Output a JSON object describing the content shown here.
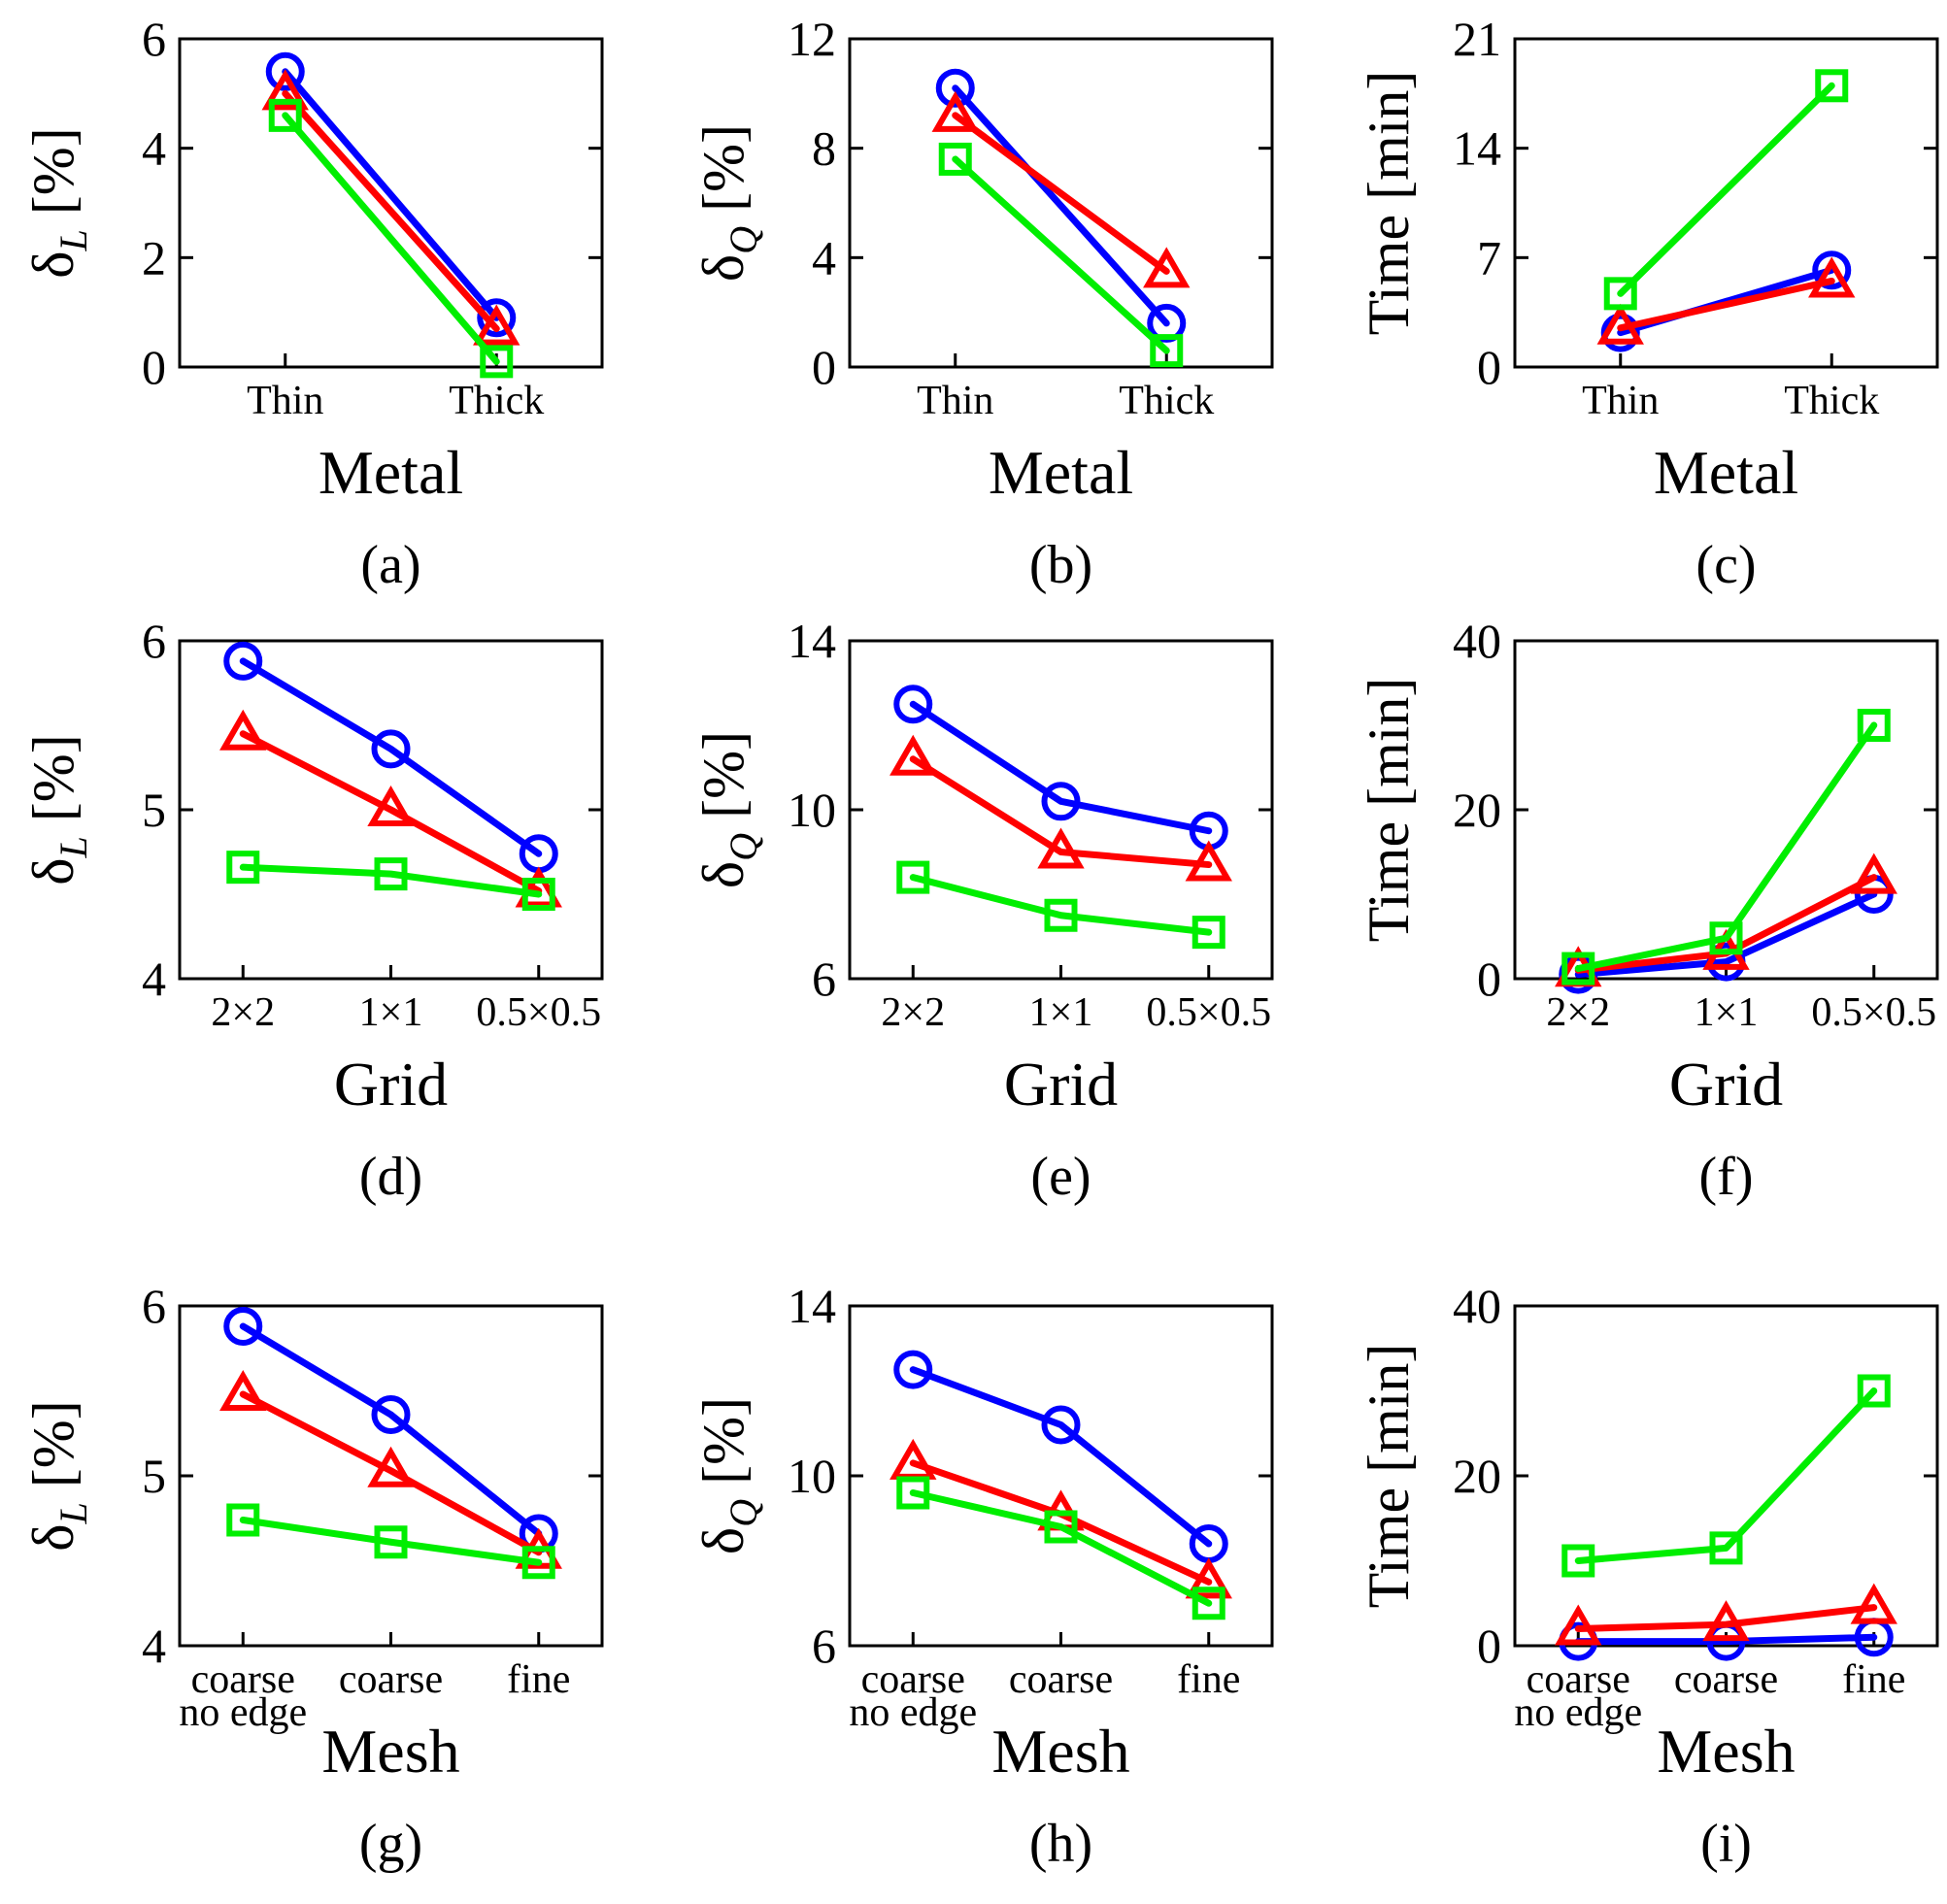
{
  "chart_data": [
    {
      "panel": "(a)",
      "type": "line",
      "xlabel": "Metal",
      "ylabel_main": "δ",
      "ylabel_sub": "L",
      "ylabel_unit": " [%]",
      "categories": [
        "Thin",
        "Thick"
      ],
      "ylim": [
        0,
        6
      ],
      "yticks": [
        "0",
        "2",
        "4",
        "6"
      ],
      "series": [
        {
          "name": "blue",
          "color": "#0000ff",
          "marker": "circle",
          "values": [
            5.4,
            0.9
          ]
        },
        {
          "name": "red",
          "color": "#ff0000",
          "marker": "triangle",
          "values": [
            5.0,
            0.7
          ]
        },
        {
          "name": "green",
          "color": "#00ee00",
          "marker": "square",
          "values": [
            4.6,
            0.1
          ]
        }
      ]
    },
    {
      "panel": "(b)",
      "type": "line",
      "xlabel": "Metal",
      "ylabel_main": "δ",
      "ylabel_sub": "Q",
      "ylabel_unit": " [%]",
      "categories": [
        "Thin",
        "Thick"
      ],
      "ylim": [
        0,
        12
      ],
      "yticks": [
        "0",
        "4",
        "8",
        "12"
      ],
      "series": [
        {
          "name": "blue",
          "color": "#0000ff",
          "marker": "circle",
          "values": [
            10.2,
            1.6
          ]
        },
        {
          "name": "red",
          "color": "#ff0000",
          "marker": "triangle",
          "values": [
            9.2,
            3.5
          ]
        },
        {
          "name": "green",
          "color": "#00ee00",
          "marker": "square",
          "values": [
            7.6,
            0.6
          ]
        }
      ]
    },
    {
      "panel": "(c)",
      "type": "line",
      "xlabel": "Metal",
      "ylabel_main": "Time [min]",
      "ylabel_sub": "",
      "ylabel_unit": "",
      "categories": [
        "Thin",
        "Thick"
      ],
      "ylim": [
        0,
        21
      ],
      "yticks": [
        "0",
        "7",
        "14",
        "21"
      ],
      "series": [
        {
          "name": "blue",
          "color": "#0000ff",
          "marker": "circle",
          "values": [
            2.2,
            6.2
          ]
        },
        {
          "name": "red",
          "color": "#ff0000",
          "marker": "triangle",
          "values": [
            2.5,
            5.5
          ]
        },
        {
          "name": "green",
          "color": "#00ee00",
          "marker": "square",
          "values": [
            4.7,
            18.0
          ]
        }
      ]
    },
    {
      "panel": "(d)",
      "type": "line",
      "xlabel": "Grid",
      "ylabel_main": "δ",
      "ylabel_sub": "L",
      "ylabel_unit": " [%]",
      "categories": [
        "2×2",
        "1×1",
        "0.5×0.5"
      ],
      "ylim": [
        4,
        6
      ],
      "yticks": [
        "4",
        "5",
        "6"
      ],
      "series": [
        {
          "name": "blue",
          "color": "#0000ff",
          "marker": "circle",
          "values": [
            5.88,
            5.36,
            4.74
          ]
        },
        {
          "name": "red",
          "color": "#ff0000",
          "marker": "triangle",
          "values": [
            5.45,
            5.0,
            4.52
          ]
        },
        {
          "name": "green",
          "color": "#00ee00",
          "marker": "square",
          "values": [
            4.66,
            4.62,
            4.5
          ]
        }
      ]
    },
    {
      "panel": "(e)",
      "type": "line",
      "xlabel": "Grid",
      "ylabel_main": "δ",
      "ylabel_sub": "Q",
      "ylabel_unit": " [%]",
      "categories": [
        "2×2",
        "1×1",
        "0.5×0.5"
      ],
      "ylim": [
        6,
        14
      ],
      "yticks": [
        "6",
        "10",
        "14"
      ],
      "series": [
        {
          "name": "blue",
          "color": "#0000ff",
          "marker": "circle",
          "values": [
            12.5,
            10.2,
            9.5
          ]
        },
        {
          "name": "red",
          "color": "#ff0000",
          "marker": "triangle",
          "values": [
            11.2,
            9.0,
            8.7
          ]
        },
        {
          "name": "green",
          "color": "#00ee00",
          "marker": "square",
          "values": [
            8.4,
            7.5,
            7.1
          ]
        }
      ]
    },
    {
      "panel": "(f)",
      "type": "line",
      "xlabel": "Grid",
      "ylabel_main": "Time [min]",
      "ylabel_sub": "",
      "ylabel_unit": "",
      "categories": [
        "2×2",
        "1×1",
        "0.5×0.5"
      ],
      "ylim": [
        0,
        40
      ],
      "yticks": [
        "0",
        "20",
        "40"
      ],
      "series": [
        {
          "name": "blue",
          "color": "#0000ff",
          "marker": "circle",
          "values": [
            0.5,
            2.0,
            10.0
          ]
        },
        {
          "name": "red",
          "color": "#ff0000",
          "marker": "triangle",
          "values": [
            1.0,
            3.0,
            12.0
          ]
        },
        {
          "name": "green",
          "color": "#00ee00",
          "marker": "square",
          "values": [
            1.2,
            4.8,
            30.0
          ]
        }
      ]
    },
    {
      "panel": "(g)",
      "type": "line",
      "xlabel": "Mesh",
      "ylabel_main": "δ",
      "ylabel_sub": "L",
      "ylabel_unit": " [%]",
      "categories": [
        "coarse|no edge",
        "coarse",
        "fine"
      ],
      "ylim": [
        4,
        6
      ],
      "yticks": [
        "4",
        "5",
        "6"
      ],
      "series": [
        {
          "name": "blue",
          "color": "#0000ff",
          "marker": "circle",
          "values": [
            5.88,
            5.36,
            4.66
          ]
        },
        {
          "name": "red",
          "color": "#ff0000",
          "marker": "triangle",
          "values": [
            5.48,
            5.03,
            4.55
          ]
        },
        {
          "name": "green",
          "color": "#00ee00",
          "marker": "square",
          "values": [
            4.74,
            4.61,
            4.49
          ]
        }
      ]
    },
    {
      "panel": "(h)",
      "type": "line",
      "xlabel": "Mesh",
      "ylabel_main": "δ",
      "ylabel_sub": "Q",
      "ylabel_unit": " [%]",
      "categories": [
        "coarse|no edge",
        "coarse",
        "fine"
      ],
      "ylim": [
        6,
        14
      ],
      "yticks": [
        "6",
        "10",
        "14"
      ],
      "series": [
        {
          "name": "blue",
          "color": "#0000ff",
          "marker": "circle",
          "values": [
            12.5,
            11.2,
            8.4
          ]
        },
        {
          "name": "red",
          "color": "#ff0000",
          "marker": "triangle",
          "values": [
            10.3,
            9.1,
            7.5
          ]
        },
        {
          "name": "green",
          "color": "#00ee00",
          "marker": "square",
          "values": [
            9.6,
            8.8,
            7.0
          ]
        }
      ]
    },
    {
      "panel": "(i)",
      "type": "line",
      "xlabel": "Mesh",
      "ylabel_main": "Time [min]",
      "ylabel_sub": "",
      "ylabel_unit": "",
      "categories": [
        "coarse|no edge",
        "coarse",
        "fine"
      ],
      "ylim": [
        0,
        40
      ],
      "yticks": [
        "0",
        "20",
        "40"
      ],
      "series": [
        {
          "name": "blue",
          "color": "#0000ff",
          "marker": "circle",
          "values": [
            0.5,
            0.5,
            1.0
          ]
        },
        {
          "name": "red",
          "color": "#ff0000",
          "marker": "triangle",
          "values": [
            2.0,
            2.5,
            4.5
          ]
        },
        {
          "name": "green",
          "color": "#00ee00",
          "marker": "square",
          "values": [
            10.0,
            11.5,
            30.0
          ]
        }
      ]
    }
  ]
}
